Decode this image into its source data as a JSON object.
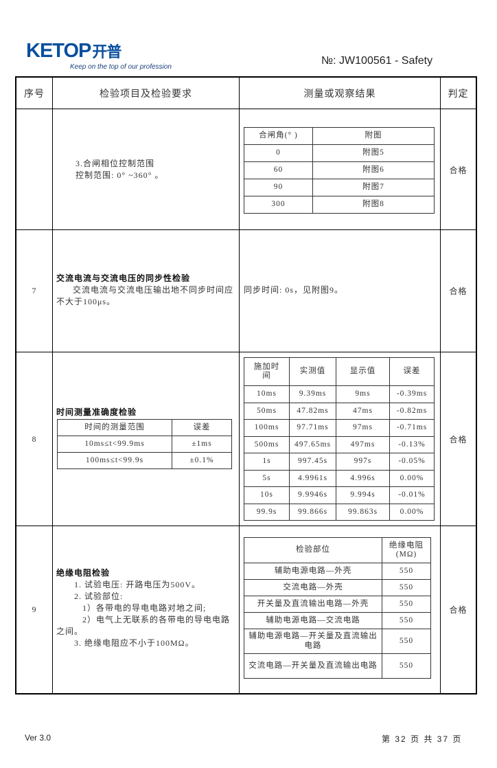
{
  "header": {
    "logo_text": "KETOP",
    "logo_cn": "开普",
    "slogan": "Keep on the top of our profession",
    "doc_no": "№:  JW100561 - Safety"
  },
  "columns": [
    "序号",
    "检验项目及检验要求",
    "测量或观察结果",
    "判定"
  ],
  "rows": [
    {
      "no": "",
      "req": [
        "3.合闸相位控制范围",
        "控制范围: 0°  ~360°  。"
      ],
      "table": {
        "headers": [
          "合闸角(°  )",
          "附图"
        ],
        "rows": [
          [
            "0",
            "附图5"
          ],
          [
            "60",
            "附图6"
          ],
          [
            "90",
            "附图7"
          ],
          [
            "300",
            "附图8"
          ]
        ]
      },
      "verdict": "合格"
    },
    {
      "no": "7",
      "req_title": "交流电流与交流电压的同步性检验",
      "req_body": "交流电流与交流电压输出地不同步时间应不大于100μs。",
      "result": "同步时间: 0s，见附图9。",
      "verdict": "合格"
    },
    {
      "no": "8",
      "req_title": "时间测量准确度检验",
      "req_table": {
        "headers": [
          "时间的测量范围",
          "误差"
        ],
        "rows": [
          [
            "10ms≤t<99.9ms",
            "±1ms"
          ],
          [
            "100ms≤t<99.9s",
            "±0.1%"
          ]
        ]
      },
      "table": {
        "headers": [
          "施加时间",
          "实测值",
          "显示值",
          "误差"
        ],
        "rows": [
          [
            "10ms",
            "9.39ms",
            "9ms",
            "-0.39ms"
          ],
          [
            "50ms",
            "47.82ms",
            "47ms",
            "-0.82ms"
          ],
          [
            "100ms",
            "97.71ms",
            "97ms",
            "-0.71ms"
          ],
          [
            "500ms",
            "497.65ms",
            "497ms",
            "-0.13%"
          ],
          [
            "1s",
            "997.45s",
            "997s",
            "-0.05%"
          ],
          [
            "5s",
            "4.9961s",
            "4.996s",
            "0.00%"
          ],
          [
            "10s",
            "9.9946s",
            "9.994s",
            "-0.01%"
          ],
          [
            "99.9s",
            "99.866s",
            "99.863s",
            "0.00%"
          ]
        ]
      },
      "verdict": "合格"
    },
    {
      "no": "9",
      "req_title": "绝缘电阻检验",
      "req_lines": [
        "1. 试验电压: 开路电压为500V。",
        "2. 试验部位:",
        "1）各带电的导电电路对地之间;",
        "2）电气上无联系的各带电的导电电路之间。",
        "3. 绝缘电阻应不小于100MΩ。"
      ],
      "table": {
        "headers": [
          "检验部位",
          "绝缘电阻(MΩ)"
        ],
        "rows": [
          [
            "辅助电源电路—外壳",
            "550"
          ],
          [
            "交流电路—外壳",
            "550"
          ],
          [
            "开关量及直流输出电路—外壳",
            "550"
          ],
          [
            "辅助电源电路—交流电路",
            "550"
          ],
          [
            "辅助电源电路—开关量及直流输出电路",
            "550"
          ],
          [
            "交流电路—开关量及直流输出电路",
            "550"
          ]
        ]
      },
      "verdict": "合格"
    }
  ],
  "footer": {
    "version": "Ver  3.0",
    "page": "第 32 页 共 37 页"
  }
}
